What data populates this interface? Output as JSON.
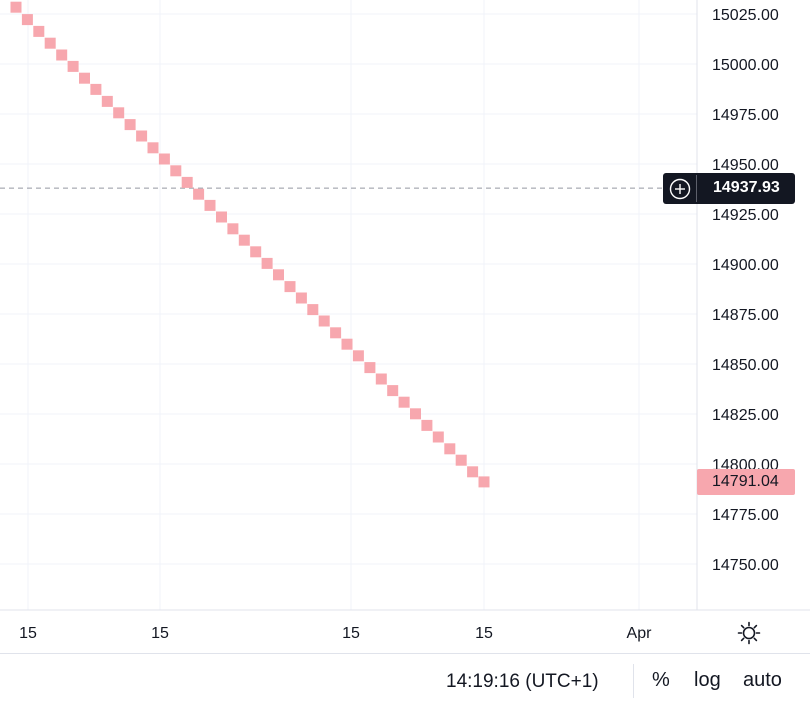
{
  "chart_data": {
    "type": "scatter",
    "marker": "square",
    "series_color": "#f7a7ae",
    "price_axis": {
      "ticks": [
        "15025.00",
        "15000.00",
        "14975.00",
        "14950.00",
        "14925.00",
        "14900.00",
        "14875.00",
        "14850.00",
        "14825.00",
        "14800.00",
        "14775.00",
        "14750.00"
      ],
      "range": [
        14728,
        15057
      ]
    },
    "time_axis": {
      "ticks": [
        "15",
        "15",
        "15",
        "15",
        "Apr"
      ]
    },
    "y": [
      15028.4,
      15022.2,
      15016.3,
      15010.4,
      15004.5,
      14998.8,
      14992.9,
      14987.3,
      14981.3,
      14975.6,
      14969.7,
      14964.0,
      14958.1,
      14952.5,
      14946.6,
      14940.8,
      14934.9,
      14929.3,
      14923.5,
      14917.6,
      14911.9,
      14906.1,
      14900.3,
      14894.6,
      14888.7,
      14883.0,
      14877.2,
      14871.5,
      14865.6,
      14859.9,
      14854.1,
      14848.2,
      14842.5,
      14836.7,
      14830.9,
      14825.1,
      14819.3,
      14813.5,
      14807.6,
      14801.9,
      14796.1,
      14791.04
    ],
    "grid": true,
    "crosshair": {
      "price": "14937.93"
    },
    "last_price": {
      "value": "14791.04",
      "color": "#f7a7ae"
    }
  },
  "bottom_bar": {
    "clock": "14:19:16 (UTC+1)",
    "percent_label": "%",
    "log_label": "log",
    "auto_label": "auto"
  },
  "icons": {
    "settings": "gear-icon",
    "add": "plus-circle-icon"
  }
}
